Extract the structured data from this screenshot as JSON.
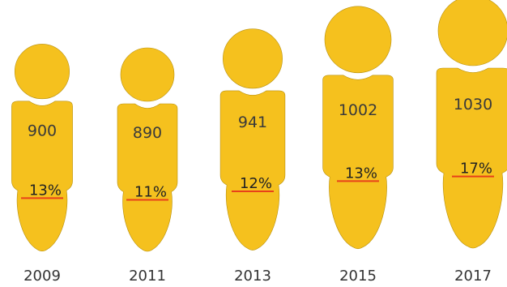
{
  "chart_data": {
    "type": "pictogram",
    "categories": [
      "2009",
      "2011",
      "2013",
      "2015",
      "2017"
    ],
    "series": [
      {
        "values": [
          900,
          890,
          941,
          1002,
          1030
        ]
      },
      {
        "values": [
          "13%",
          "11%",
          "12%",
          "13%",
          "17%"
        ]
      }
    ],
    "colors": {
      "figure": "#f5c11e",
      "figure_outline": "#b8900c",
      "marker_line": "#e8411a"
    },
    "title": "",
    "xlabel": "",
    "ylabel": ""
  }
}
